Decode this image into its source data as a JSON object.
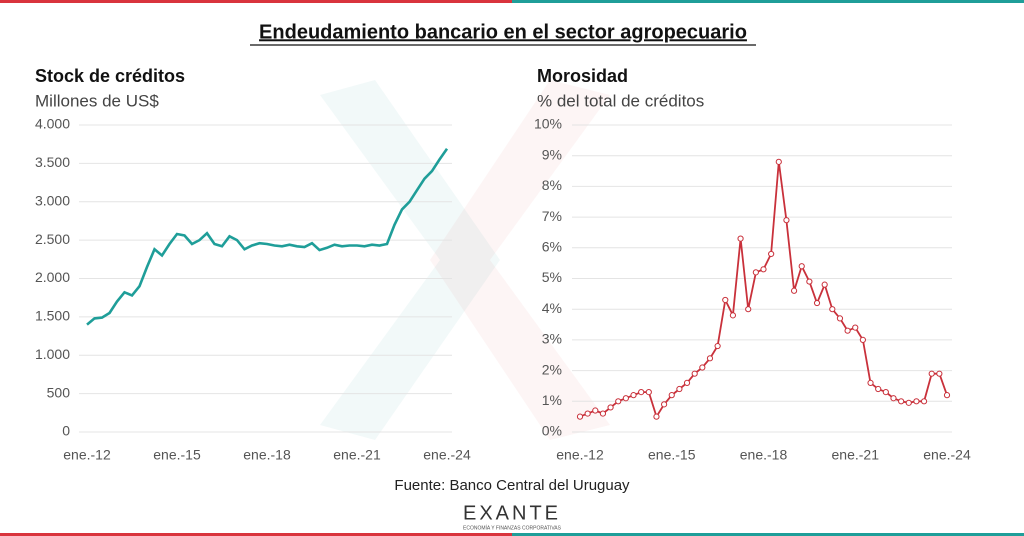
{
  "title": "Endeudamiento bancario en el sector agropecuario",
  "source": "Fuente: Banco Central del Uruguay",
  "brand": "EXANTE",
  "brand_tagline": "ECONOMÍA Y FINANZAS CORPORATIVAS",
  "chart_data": [
    {
      "type": "line",
      "title": "Stock de créditos",
      "subtitle": "Millones de US$",
      "categories": [
        "ene.-12",
        null,
        null,
        null,
        null,
        null,
        null,
        null,
        null,
        null,
        null,
        null,
        "ene.-15",
        null,
        null,
        null,
        null,
        null,
        null,
        null,
        null,
        null,
        null,
        null,
        "ene.-18",
        null,
        null,
        null,
        null,
        null,
        null,
        null,
        null,
        null,
        null,
        null,
        "ene.-21",
        null,
        null,
        null,
        null,
        null,
        null,
        null,
        null,
        null,
        null,
        null,
        "ene.-24"
      ],
      "values": [
        1400,
        1480,
        1490,
        1550,
        1700,
        1820,
        1780,
        1900,
        2150,
        2380,
        2300,
        2450,
        2580,
        2560,
        2450,
        2500,
        2590,
        2450,
        2420,
        2550,
        2500,
        2380,
        2430,
        2460,
        2450,
        2430,
        2420,
        2440,
        2420,
        2410,
        2460,
        2370,
        2400,
        2440,
        2420,
        2430,
        2430,
        2420,
        2440,
        2430,
        2450,
        2700,
        2900,
        3000,
        3150,
        3300,
        3400,
        3550,
        3690
      ],
      "color": "#1f9e99",
      "markers": false,
      "ylim": [
        0,
        4000
      ],
      "yticks": [
        0,
        500,
        {
          "value": 1000,
          "label": "1.000"
        },
        {
          "value": 1500,
          "label": "1.500"
        },
        {
          "value": 2000,
          "label": "2.000"
        },
        {
          "value": 2500,
          "label": "2.500"
        },
        {
          "value": 3000,
          "label": "3.000"
        },
        {
          "value": 3500,
          "label": "3.500"
        },
        {
          "value": 4000,
          "label": "4.000"
        }
      ],
      "grid": true
    },
    {
      "type": "line",
      "title": "Morosidad",
      "subtitle": "% del total de créditos",
      "categories": [
        "ene.-12",
        null,
        null,
        null,
        null,
        null,
        null,
        null,
        null,
        null,
        null,
        null,
        "ene.-15",
        null,
        null,
        null,
        null,
        null,
        null,
        null,
        null,
        null,
        null,
        null,
        "ene.-18",
        null,
        null,
        null,
        null,
        null,
        null,
        null,
        null,
        null,
        null,
        null,
        "ene.-21",
        null,
        null,
        null,
        null,
        null,
        null,
        null,
        null,
        null,
        null,
        null,
        "ene.-24"
      ],
      "values": [
        0.5,
        0.6,
        0.7,
        0.6,
        0.8,
        1.0,
        1.1,
        1.2,
        1.3,
        1.3,
        0.5,
        0.9,
        1.2,
        1.4,
        1.6,
        1.9,
        2.1,
        2.4,
        2.8,
        4.3,
        3.8,
        6.3,
        4.0,
        5.2,
        5.3,
        5.8,
        8.8,
        6.9,
        4.6,
        5.4,
        4.9,
        4.2,
        4.8,
        4.0,
        3.7,
        3.3,
        3.4,
        3.0,
        1.6,
        1.4,
        1.3,
        1.1,
        1.0,
        0.95,
        1.0,
        1.0,
        1.9,
        1.9,
        1.2
      ],
      "color": "#c9313b",
      "markers": true,
      "ylim": [
        0,
        10
      ],
      "yticks": [
        {
          "value": 0,
          "label": "0%"
        },
        {
          "value": 1,
          "label": "1%"
        },
        {
          "value": 2,
          "label": "2%"
        },
        {
          "value": 3,
          "label": "3%"
        },
        {
          "value": 4,
          "label": "4%"
        },
        {
          "value": 5,
          "label": "5%"
        },
        {
          "value": 6,
          "label": "6%"
        },
        {
          "value": 7,
          "label": "7%"
        },
        {
          "value": 8,
          "label": "8%"
        },
        {
          "value": 9,
          "label": "9%"
        },
        {
          "value": 10,
          "label": "10%"
        }
      ],
      "grid": true
    }
  ]
}
